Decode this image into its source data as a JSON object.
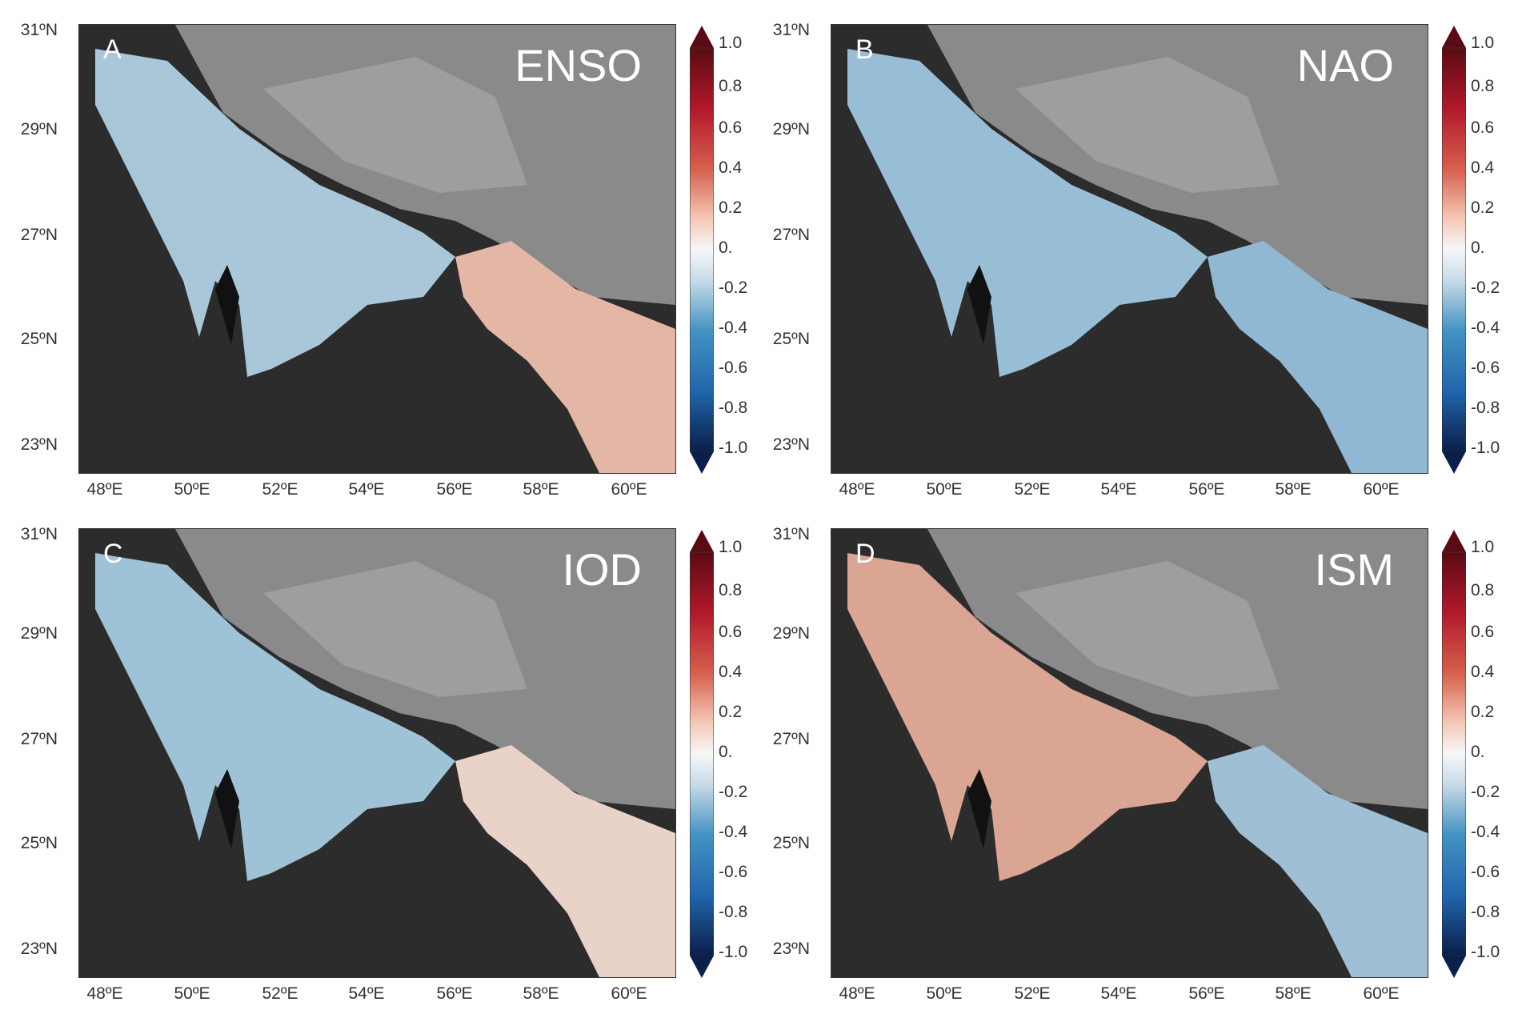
{
  "lat_labels": [
    "31ºN",
    "29ºN",
    "27ºN",
    "25ºN",
    "23ºN"
  ],
  "lon_labels": [
    "48ºE",
    "50ºE",
    "52ºE",
    "54ºE",
    "56ºE",
    "58ºE",
    "60ºE"
  ],
  "colorbar_labels": [
    "1.0",
    "0.8",
    "0.6",
    "0.4",
    "0.2",
    "0.",
    "-0.2",
    "-0.4",
    "-0.6",
    "-0.8",
    "-1.0"
  ],
  "colorbar_range": [
    -1.0,
    1.0
  ],
  "panels": [
    {
      "letter": "A",
      "index": "ENSO",
      "gulf_color": "#a9c7d9",
      "oman_color": "#e4b6a6",
      "sig_hatch": true
    },
    {
      "letter": "B",
      "index": "NAO",
      "gulf_color": "#98bed6",
      "oman_color": "#90b8d2",
      "sig_hatch": true
    },
    {
      "letter": "C",
      "index": "IOD",
      "gulf_color": "#9fc3d6",
      "oman_color": "#e9d2c8",
      "sig_hatch": false
    },
    {
      "letter": "D",
      "index": "ISM",
      "gulf_color": "#dba593",
      "oman_color": "#9fc0d4",
      "sig_hatch": false
    }
  ]
}
